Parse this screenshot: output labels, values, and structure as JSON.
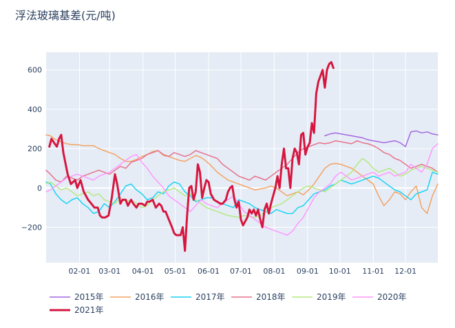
{
  "chart_data": {
    "type": "line",
    "title": "浮法玻璃基差(元/吨)",
    "xlabel": "",
    "ylabel": "",
    "x_axis": "day of year (1 = Jan 01)",
    "xlim": [
      1,
      365
    ],
    "ylim": [
      -380,
      690
    ],
    "x_ticks": [
      {
        "label": "02-01",
        "x": 32
      },
      {
        "label": "03-01",
        "x": 60
      },
      {
        "label": "04-01",
        "x": 91
      },
      {
        "label": "05-01",
        "x": 121
      },
      {
        "label": "06-01",
        "x": 152
      },
      {
        "label": "07-01",
        "x": 182
      },
      {
        "label": "08-01",
        "x": 213
      },
      {
        "label": "09-01",
        "x": 244
      },
      {
        "label": "10-01",
        "x": 274
      },
      {
        "label": "11-01",
        "x": 305
      },
      {
        "label": "12-01",
        "x": 335
      }
    ],
    "y_ticks": [
      {
        "label": "−200",
        "value": -200
      },
      {
        "label": "0",
        "value": 0
      },
      {
        "label": "200",
        "value": 200
      },
      {
        "label": "400",
        "value": 400
      },
      {
        "label": "600",
        "value": 600
      }
    ],
    "grid": true,
    "legend_position": "bottom",
    "series": [
      {
        "name": "2015年",
        "color": "#a367e0",
        "width": 1.5,
        "x": [
          260,
          265,
          270,
          275,
          280,
          285,
          290,
          295,
          300,
          305,
          310,
          315,
          320,
          325,
          330,
          335,
          340,
          345,
          350,
          355,
          360,
          365
        ],
        "y": [
          265,
          275,
          280,
          275,
          270,
          265,
          260,
          255,
          245,
          240,
          235,
          230,
          235,
          240,
          230,
          210,
          285,
          290,
          280,
          285,
          275,
          270
        ]
      },
      {
        "name": "2016年",
        "color": "#f4a261",
        "width": 1.5,
        "x": [
          1,
          5,
          10,
          15,
          20,
          25,
          30,
          35,
          40,
          45,
          50,
          55,
          60,
          65,
          70,
          75,
          80,
          85,
          90,
          95,
          100,
          105,
          110,
          115,
          120,
          125,
          130,
          135,
          140,
          145,
          150,
          155,
          160,
          165,
          170,
          175,
          180,
          185,
          190,
          195,
          200,
          205,
          210,
          215,
          220,
          225,
          230,
          235,
          240,
          245,
          250,
          255,
          260,
          265,
          270,
          275,
          280,
          285,
          290,
          295,
          300,
          305,
          310,
          315,
          320,
          325,
          330,
          335,
          340,
          345,
          350,
          355,
          360,
          365
        ],
        "y": [
          270,
          265,
          245,
          235,
          225,
          220,
          220,
          215,
          215,
          215,
          200,
          190,
          180,
          170,
          150,
          135,
          135,
          145,
          160,
          170,
          185,
          190,
          165,
          160,
          150,
          140,
          135,
          150,
          165,
          155,
          135,
          110,
          80,
          60,
          40,
          30,
          20,
          10,
          0,
          -10,
          -5,
          0,
          10,
          0,
          -20,
          -40,
          -30,
          -20,
          -35,
          -10,
          20,
          60,
          100,
          120,
          125,
          120,
          110,
          100,
          80,
          60,
          40,
          20,
          -40,
          -90,
          -60,
          -20,
          -30,
          -60,
          -20,
          10,
          -100,
          -130,
          -40,
          20
        ]
      },
      {
        "name": "2017年",
        "color": "#19d3f3",
        "width": 1.5,
        "x": [
          1,
          5,
          10,
          15,
          20,
          25,
          30,
          35,
          40,
          45,
          50,
          55,
          60,
          65,
          70,
          75,
          80,
          85,
          90,
          95,
          100,
          105,
          110,
          115,
          120,
          125,
          130,
          135,
          140,
          145,
          150,
          155,
          160,
          165,
          170,
          175,
          180,
          185,
          190,
          195,
          200,
          205,
          210,
          215,
          220,
          225,
          230,
          235,
          240,
          245,
          250,
          255,
          260,
          265,
          270,
          275,
          280,
          285,
          290,
          295,
          300,
          305,
          310,
          315,
          320,
          325,
          330,
          335,
          340,
          345,
          350,
          355,
          360,
          365
        ],
        "y": [
          30,
          20,
          -30,
          -60,
          -80,
          -60,
          -50,
          -80,
          -100,
          -130,
          -120,
          -80,
          -100,
          -70,
          -30,
          10,
          20,
          -10,
          -30,
          -60,
          -50,
          -20,
          -30,
          10,
          30,
          20,
          -20,
          -40,
          -70,
          -60,
          -50,
          -50,
          -70,
          -80,
          -90,
          -100,
          -60,
          -70,
          -80,
          -100,
          -110,
          -120,
          -130,
          -110,
          -120,
          -130,
          -130,
          -100,
          -90,
          -60,
          -30,
          -20,
          -10,
          10,
          20,
          40,
          30,
          20,
          30,
          40,
          50,
          60,
          50,
          30,
          10,
          -10,
          -20,
          -40,
          -60,
          -30,
          -20,
          -10,
          80,
          70
        ]
      },
      {
        "name": "2018年",
        "color": "#e7708a",
        "width": 1.5,
        "x": [
          1,
          5,
          10,
          15,
          20,
          25,
          30,
          35,
          40,
          45,
          50,
          55,
          60,
          65,
          70,
          75,
          80,
          85,
          90,
          95,
          100,
          105,
          110,
          115,
          120,
          125,
          130,
          135,
          140,
          145,
          150,
          155,
          160,
          165,
          170,
          175,
          180,
          185,
          190,
          195,
          200,
          205,
          210,
          215,
          220,
          225,
          230,
          235,
          240,
          245,
          250,
          255,
          260,
          265,
          270,
          275,
          280,
          285,
          290,
          295,
          300,
          305,
          310,
          315,
          320,
          325,
          330,
          335,
          340,
          345,
          350,
          355,
          360,
          365
        ],
        "y": [
          90,
          70,
          40,
          30,
          60,
          50,
          40,
          60,
          70,
          80,
          90,
          80,
          70,
          90,
          110,
          100,
          130,
          140,
          150,
          170,
          180,
          190,
          170,
          160,
          180,
          170,
          160,
          170,
          190,
          180,
          170,
          160,
          150,
          120,
          100,
          80,
          60,
          50,
          40,
          60,
          50,
          40,
          60,
          80,
          100,
          120,
          150,
          180,
          200,
          210,
          220,
          230,
          225,
          230,
          240,
          235,
          230,
          225,
          240,
          230,
          225,
          215,
          200,
          180,
          170,
          150,
          140,
          120,
          100,
          110,
          120,
          110,
          100,
          80
        ]
      },
      {
        "name": "2019年",
        "color": "#b6e880",
        "width": 1.5,
        "x": [
          1,
          5,
          10,
          15,
          20,
          25,
          30,
          35,
          40,
          45,
          50,
          55,
          60,
          65,
          70,
          75,
          80,
          85,
          90,
          95,
          100,
          105,
          110,
          115,
          120,
          125,
          130,
          135,
          140,
          145,
          150,
          155,
          160,
          165,
          170,
          175,
          180,
          185,
          190,
          195,
          200,
          205,
          210,
          215,
          220,
          225,
          230,
          235,
          240,
          245,
          250,
          255,
          260,
          265,
          270,
          275,
          280,
          285,
          290,
          295,
          300,
          305,
          310,
          315,
          320,
          325,
          330,
          335,
          340,
          345,
          350,
          355,
          360,
          365
        ],
        "y": [
          20,
          30,
          10,
          -10,
          0,
          -20,
          -40,
          -30,
          -20,
          -40,
          -30,
          -60,
          -70,
          -80,
          -50,
          -70,
          -60,
          -80,
          -100,
          -90,
          -60,
          -40,
          -20,
          -10,
          0,
          -20,
          -40,
          -30,
          -60,
          -80,
          -100,
          -110,
          -120,
          -130,
          -140,
          -145,
          -150,
          -140,
          -145,
          -150,
          -140,
          -120,
          -100,
          -90,
          -80,
          -60,
          -40,
          -20,
          0,
          10,
          0,
          -10,
          -20,
          0,
          20,
          40,
          60,
          80,
          120,
          150,
          130,
          100,
          80,
          90,
          100,
          80,
          60,
          70,
          90,
          100,
          110,
          100,
          90,
          80
        ]
      },
      {
        "name": "2020年",
        "color": "#ff97ff",
        "width": 1.5,
        "x": [
          1,
          5,
          10,
          15,
          20,
          25,
          30,
          35,
          40,
          45,
          50,
          55,
          60,
          65,
          70,
          75,
          80,
          85,
          90,
          95,
          100,
          105,
          110,
          115,
          120,
          125,
          130,
          135,
          140,
          145,
          150,
          155,
          160,
          165,
          170,
          175,
          180,
          185,
          190,
          195,
          200,
          205,
          210,
          215,
          220,
          225,
          230,
          235,
          240,
          245,
          250,
          255,
          260,
          265,
          270,
          275,
          280,
          285,
          290,
          295,
          300,
          305,
          310,
          315,
          320,
          325,
          330,
          335,
          340,
          345,
          350,
          355,
          360,
          365
        ],
        "y": [
          -20,
          -10,
          10,
          30,
          50,
          60,
          70,
          60,
          50,
          40,
          60,
          70,
          80,
          100,
          120,
          140,
          160,
          170,
          130,
          100,
          60,
          30,
          0,
          -40,
          -60,
          -80,
          -100,
          -120,
          -90,
          -60,
          -80,
          -90,
          -100,
          -80,
          -60,
          -40,
          -80,
          -120,
          -140,
          -160,
          -180,
          -200,
          -210,
          -220,
          -230,
          -240,
          -220,
          -180,
          -150,
          -100,
          -50,
          -20,
          0,
          20,
          60,
          80,
          60,
          40,
          50,
          60,
          70,
          80,
          60,
          70,
          80,
          60,
          70,
          80,
          120,
          100,
          80,
          120,
          200,
          225
        ]
      },
      {
        "name": "2021年",
        "color": "#d6163f",
        "width": 3,
        "x": [
          4,
          6,
          9,
          11,
          13,
          15,
          17,
          21,
          24,
          28,
          30,
          33,
          36,
          40,
          43,
          46,
          49,
          51,
          53,
          56,
          59,
          62,
          65,
          67,
          70,
          72,
          75,
          77,
          80,
          82,
          85,
          87,
          90,
          93,
          95,
          97,
          100,
          103,
          106,
          108,
          110,
          112,
          115,
          118,
          120,
          122,
          124,
          126,
          128,
          130,
          132,
          134,
          136,
          138,
          140,
          142,
          144,
          146,
          148,
          150,
          152,
          154,
          157,
          160,
          163,
          165,
          168,
          170,
          172,
          174,
          176,
          178,
          180,
          182,
          184,
          186,
          188,
          190,
          192,
          194,
          196,
          198,
          200,
          202,
          204,
          206,
          208,
          210,
          212,
          214,
          216,
          218,
          220,
          222,
          224,
          226,
          228,
          230,
          232,
          234,
          236,
          238,
          240,
          242,
          244,
          246,
          248,
          250,
          252,
          254,
          256,
          258,
          260,
          262,
          264,
          266,
          268
        ],
        "y": [
          210,
          250,
          225,
          210,
          250,
          270,
          180,
          70,
          20,
          40,
          0,
          40,
          -20,
          -60,
          -80,
          -100,
          -100,
          -140,
          -150,
          -150,
          -140,
          -50,
          70,
          20,
          -80,
          -60,
          -60,
          -90,
          -60,
          -80,
          -100,
          -80,
          -80,
          -90,
          -70,
          -70,
          -60,
          -100,
          -80,
          -90,
          -120,
          -120,
          -160,
          -200,
          -230,
          -240,
          -240,
          -240,
          -200,
          -320,
          -140,
          0,
          10,
          -60,
          -20,
          120,
          80,
          -50,
          0,
          40,
          30,
          -30,
          -60,
          -70,
          -80,
          -80,
          -60,
          -20,
          0,
          10,
          -60,
          -100,
          -70,
          -160,
          -190,
          -170,
          -150,
          -110,
          -130,
          -110,
          -140,
          -110,
          -160,
          -200,
          -110,
          -80,
          -130,
          -80,
          -40,
          0,
          60,
          0,
          120,
          200,
          100,
          100,
          0,
          150,
          200,
          180,
          120,
          270,
          280,
          170,
          210,
          230,
          330,
          280,
          480,
          540,
          570,
          600,
          510,
          600,
          630,
          640,
          610
        ]
      }
    ]
  }
}
